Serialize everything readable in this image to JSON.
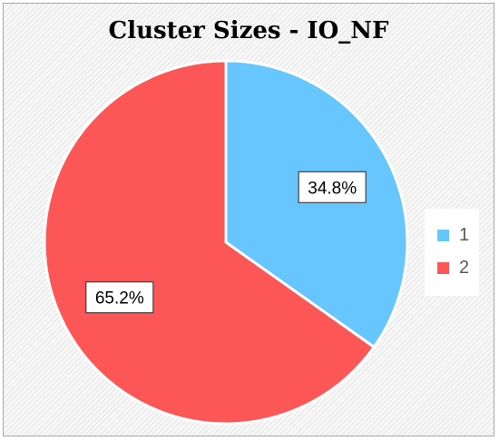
{
  "chart_data": {
    "type": "pie",
    "title": "Cluster Sizes - IO_NF",
    "slices": [
      {
        "label": "1",
        "value": 34.8,
        "display": "34.8%",
        "color": "#66c6fd"
      },
      {
        "label": "2",
        "value": 65.2,
        "display": "65.2%",
        "color": "#fd5656"
      }
    ],
    "start_angle_deg": 0,
    "direction": "clockwise",
    "legend_position": "right",
    "slice_border_color": "#ffffff"
  }
}
